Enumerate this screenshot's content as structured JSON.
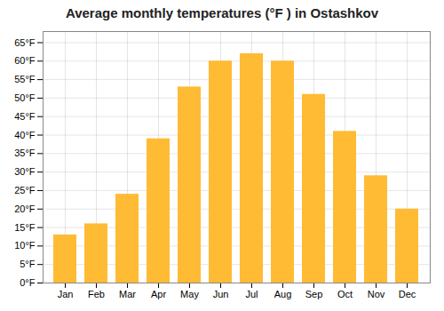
{
  "chart_data": {
    "type": "bar",
    "title": "Average monthly temperatures (°F ) in Ostashkov",
    "categories": [
      "Jan",
      "Feb",
      "Mar",
      "Apr",
      "May",
      "Jun",
      "Jul",
      "Aug",
      "Sep",
      "Oct",
      "Nov",
      "Dec"
    ],
    "values": [
      13,
      16,
      24,
      39,
      53,
      60,
      62,
      60,
      51,
      41,
      29,
      20
    ],
    "color": "#FFBB33",
    "ylim": [
      0,
      68
    ],
    "yticks": [
      {
        "value": 0,
        "label": "0°F"
      },
      {
        "value": 5,
        "label": "5°F"
      },
      {
        "value": 10,
        "label": "10°F"
      },
      {
        "value": 15,
        "label": "15°F"
      },
      {
        "value": 20,
        "label": "20°F"
      },
      {
        "value": 25,
        "label": "25°F"
      },
      {
        "value": 30,
        "label": "30°F"
      },
      {
        "value": 35,
        "label": "35°F"
      },
      {
        "value": 40,
        "label": "40°F"
      },
      {
        "value": 45,
        "label": "45°F"
      },
      {
        "value": 50,
        "label": "50°F"
      },
      {
        "value": 55,
        "label": "55°F"
      },
      {
        "value": 60,
        "label": "60°F"
      },
      {
        "value": 65,
        "label": "65°F"
      }
    ],
    "grid": true
  }
}
